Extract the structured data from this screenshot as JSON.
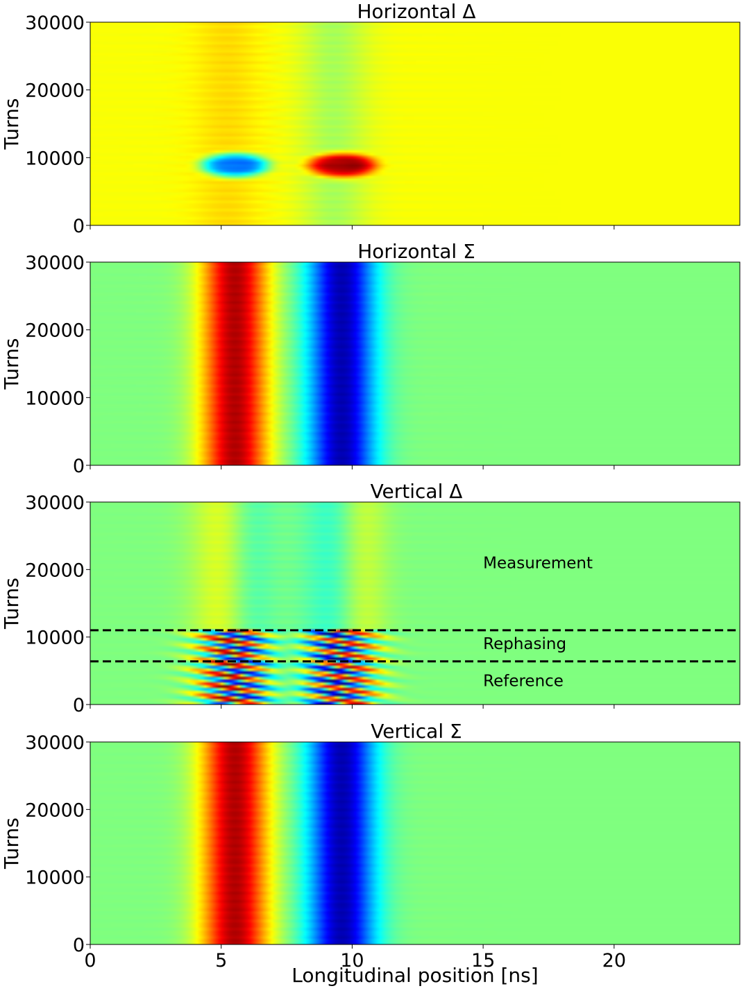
{
  "figure": {
    "xlabel": "Longitudinal position [ns]",
    "x_ticks": [
      0,
      5,
      10,
      15,
      20
    ],
    "xlim": [
      0,
      24.8
    ]
  },
  "chart_data": [
    {
      "type": "heatmap",
      "title": "Horizontal Δ",
      "ylabel": "Turns",
      "ylim": [
        0,
        30000
      ],
      "y_ticks": [
        0,
        10000,
        20000,
        30000
      ],
      "colormap": "jet",
      "background_level": 0.62,
      "features": [
        {
          "x": 5.5,
          "y": 8800,
          "x_width": 1.3,
          "y_width": 1800,
          "amplitude": -0.42,
          "shape": "blob"
        },
        {
          "x": 9.6,
          "y": 8800,
          "x_width": 1.3,
          "y_width": 1800,
          "amplitude": 0.42,
          "shape": "blob"
        },
        {
          "x": 5.2,
          "y": 15000,
          "x_width": 0.9,
          "amplitude": 0.04,
          "shape": "band"
        },
        {
          "x": 9.3,
          "y": 15000,
          "x_width": 0.9,
          "amplitude": -0.08,
          "shape": "band"
        }
      ],
      "annotations": [],
      "hlines": []
    },
    {
      "type": "heatmap",
      "title": "Horizontal Σ",
      "ylabel": "Turns",
      "ylim": [
        0,
        30000
      ],
      "y_ticks": [
        0,
        10000,
        20000,
        30000
      ],
      "colormap": "jet",
      "background_level": 0.5,
      "features": [
        {
          "x": 5.5,
          "x_width": 0.9,
          "amplitude": 0.45,
          "shape": "band"
        },
        {
          "x": 9.6,
          "x_width": 0.9,
          "amplitude": -0.45,
          "shape": "band"
        }
      ],
      "annotations": [],
      "hlines": []
    },
    {
      "type": "heatmap",
      "title": "Vertical Δ",
      "ylabel": "Turns",
      "ylim": [
        0,
        30000
      ],
      "y_ticks": [
        0,
        10000,
        20000,
        30000
      ],
      "colormap": "jet",
      "background_level": 0.5,
      "features": [
        {
          "x": 5.2,
          "y": 21000,
          "x_width": 0.9,
          "amplitude": 0.12,
          "shape": "band"
        },
        {
          "x": 6.0,
          "y": 21000,
          "x_width": 0.7,
          "amplitude": -0.1,
          "shape": "band"
        },
        {
          "x": 9.5,
          "y": 21000,
          "x_width": 0.9,
          "amplitude": -0.1,
          "shape": "band"
        },
        {
          "x": 10.3,
          "y": 21000,
          "x_width": 0.7,
          "amplitude": 0.12,
          "shape": "band"
        },
        {
          "x": 5.5,
          "y": 8500,
          "x_width": 1.0,
          "amplitude": 0.48,
          "shape": "stripes"
        },
        {
          "x": 9.5,
          "y": 8500,
          "x_width": 1.0,
          "amplitude": 0.48,
          "shape": "stripes"
        },
        {
          "x": 5.5,
          "y": 3000,
          "x_width": 1.0,
          "amplitude": 0.48,
          "shape": "stripes"
        },
        {
          "x": 9.5,
          "y": 3000,
          "x_width": 1.0,
          "amplitude": 0.48,
          "shape": "stripes"
        }
      ],
      "annotations": [
        {
          "text": "Measurement",
          "x": 15,
          "y": 20200
        },
        {
          "text": "Rephasing",
          "x": 15,
          "y": 8200
        },
        {
          "text": "Reference",
          "x": 15,
          "y": 2700
        }
      ],
      "hlines": [
        11000,
        6400
      ]
    },
    {
      "type": "heatmap",
      "title": "Vertical Σ",
      "ylabel": "Turns",
      "ylim": [
        0,
        30000
      ],
      "y_ticks": [
        0,
        10000,
        20000,
        30000
      ],
      "colormap": "jet",
      "background_level": 0.5,
      "features": [
        {
          "x": 5.5,
          "x_width": 0.9,
          "amplitude": 0.45,
          "shape": "band"
        },
        {
          "x": 9.6,
          "x_width": 0.9,
          "amplitude": -0.45,
          "shape": "band"
        }
      ],
      "annotations": [],
      "hlines": []
    }
  ]
}
